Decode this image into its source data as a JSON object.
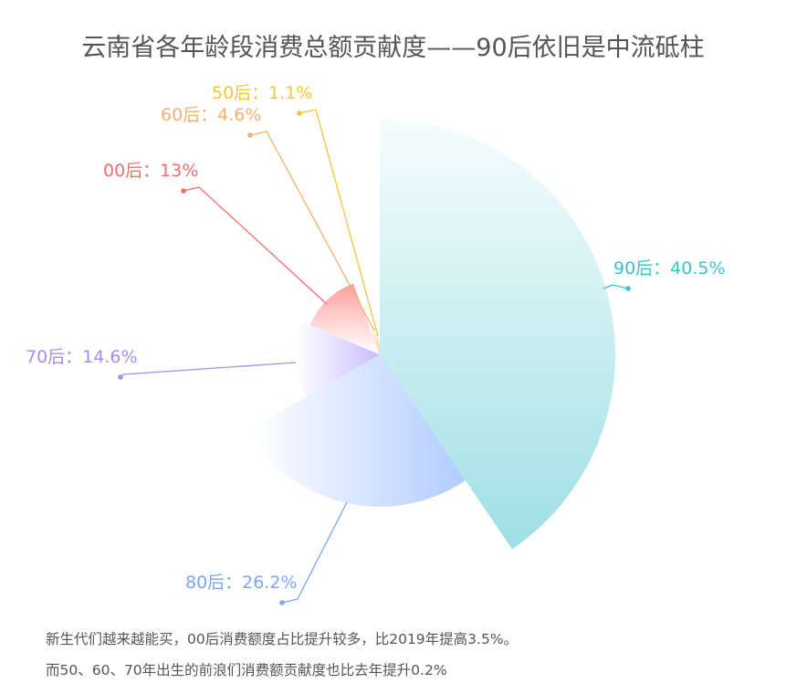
{
  "chart_data": {
    "type": "pie",
    "rose_type": "radius",
    "title": "云南省各年龄段消费总额贡献度——90后依旧是中流砥柱",
    "categories": [
      "90后",
      "80后",
      "70后",
      "00后",
      "60后",
      "50后"
    ],
    "values": [
      40.5,
      26.2,
      14.6,
      13,
      4.6,
      1.1
    ],
    "labels": [
      "90后：40.5%",
      "80后：26.2%",
      "70后：14.6%",
      "00后：13%",
      "60后：4.6%",
      "50后：1.1%"
    ],
    "colors": [
      "#3bc3cc",
      "#7aa8f5",
      "#a48ef0",
      "#f07070",
      "#f6b070",
      "#f6c63a"
    ],
    "fill_colors": [
      "#9fdfe5",
      "#b0cbff",
      "#c6bcff",
      "#ff9c9c",
      "#ffc08a",
      "#ffd77a"
    ]
  },
  "notes": [
    "新生代们越来越能买，00后消费额度占比提升较多，比2019年提高3.5%。",
    "而50、60、70年出生的前浪们消费额贡献度也比去年提升0.2%"
  ]
}
